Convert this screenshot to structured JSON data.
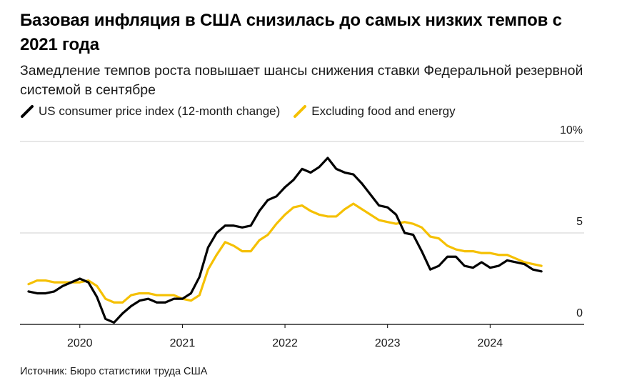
{
  "header": {
    "title": "Базовая инфляция в США снизилась до самых низких темпов с 2021 года",
    "subtitle": "Замедление темпов роста повышает шансы снижения ставки Федеральной резервной системой в сентябре"
  },
  "legend": {
    "items": [
      {
        "label": "US consumer price index (12-month change)",
        "color": "#000000"
      },
      {
        "label": "Excluding food and energy",
        "color": "#f5c000"
      }
    ]
  },
  "source": "Источник: Бюро статистики труда США",
  "chart_data": {
    "type": "line",
    "title": "Базовая инфляция в США снизилась до самых низких темпов с 2021 года",
    "subtitle": "Замедление темпов роста повышает шансы снижения ставки Федеральной резервной системой в сентябре",
    "xlabel": "",
    "ylabel": "",
    "ylim": [
      0,
      10
    ],
    "grid": true,
    "legend_position": "top-left",
    "y_ticks": [
      0,
      5,
      10
    ],
    "y_tick_labels": [
      "0",
      "5",
      "10%"
    ],
    "x_ticks": [
      "2020",
      "2021",
      "2022",
      "2023",
      "2024"
    ],
    "x_tick_positions": [
      "2020-01",
      "2021-01",
      "2022-01",
      "2023-01",
      "2024-01"
    ],
    "x_range": [
      "2019-06",
      "2024-12"
    ],
    "x": [
      "2019-07",
      "2019-08",
      "2019-09",
      "2019-10",
      "2019-11",
      "2019-12",
      "2020-01",
      "2020-02",
      "2020-03",
      "2020-04",
      "2020-05",
      "2020-06",
      "2020-07",
      "2020-08",
      "2020-09",
      "2020-10",
      "2020-11",
      "2020-12",
      "2021-01",
      "2021-02",
      "2021-03",
      "2021-04",
      "2021-05",
      "2021-06",
      "2021-07",
      "2021-08",
      "2021-09",
      "2021-10",
      "2021-11",
      "2021-12",
      "2022-01",
      "2022-02",
      "2022-03",
      "2022-04",
      "2022-05",
      "2022-06",
      "2022-07",
      "2022-08",
      "2022-09",
      "2022-10",
      "2022-11",
      "2022-12",
      "2023-01",
      "2023-02",
      "2023-03",
      "2023-04",
      "2023-05",
      "2023-06",
      "2023-07",
      "2023-08",
      "2023-09",
      "2023-10",
      "2023-11",
      "2023-12",
      "2024-01",
      "2024-02",
      "2024-03",
      "2024-04",
      "2024-05",
      "2024-06",
      "2024-07"
    ],
    "series": [
      {
        "name": "US consumer price index (12-month change)",
        "color": "#000000",
        "values": [
          1.8,
          1.7,
          1.7,
          1.8,
          2.1,
          2.3,
          2.5,
          2.3,
          1.5,
          0.3,
          0.1,
          0.6,
          1.0,
          1.3,
          1.4,
          1.2,
          1.2,
          1.4,
          1.4,
          1.7,
          2.6,
          4.2,
          5.0,
          5.4,
          5.4,
          5.3,
          5.4,
          6.2,
          6.8,
          7.0,
          7.5,
          7.9,
          8.5,
          8.3,
          8.6,
          9.1,
          8.5,
          8.3,
          8.2,
          7.7,
          7.1,
          6.5,
          6.4,
          6.0,
          5.0,
          4.9,
          4.0,
          3.0,
          3.2,
          3.7,
          3.7,
          3.2,
          3.1,
          3.4,
          3.1,
          3.2,
          3.5,
          3.4,
          3.3,
          3.0,
          2.9
        ]
      },
      {
        "name": "Excluding food and energy",
        "color": "#f5c000",
        "values": [
          2.2,
          2.4,
          2.4,
          2.3,
          2.3,
          2.3,
          2.3,
          2.4,
          2.1,
          1.4,
          1.2,
          1.2,
          1.6,
          1.7,
          1.7,
          1.6,
          1.6,
          1.6,
          1.4,
          1.3,
          1.6,
          3.0,
          3.8,
          4.5,
          4.3,
          4.0,
          4.0,
          4.6,
          4.9,
          5.5,
          6.0,
          6.4,
          6.5,
          6.2,
          6.0,
          5.9,
          5.9,
          6.3,
          6.6,
          6.3,
          6.0,
          5.7,
          5.6,
          5.5,
          5.6,
          5.5,
          5.3,
          4.8,
          4.7,
          4.3,
          4.1,
          4.0,
          4.0,
          3.9,
          3.9,
          3.8,
          3.8,
          3.6,
          3.4,
          3.3,
          3.2
        ]
      }
    ]
  }
}
